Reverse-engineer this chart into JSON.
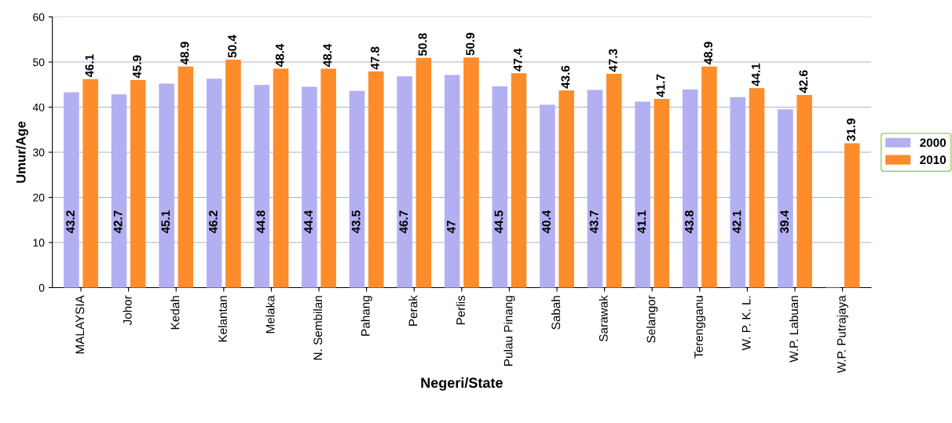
{
  "chart_data": {
    "type": "bar",
    "xlabel": "Negeri/State",
    "ylabel": "Umur/Age",
    "categories": [
      "MALAYSIA",
      "Johor",
      "Kedah",
      "Kelantan",
      "Melaka",
      "N. Sembilan",
      "Pahang",
      "Perak",
      "Perlis",
      "Pulau Pinang",
      "Sabah",
      "Sarawak",
      "Selangor",
      "Terengganu",
      "W. P. K. L.",
      "W.P. Labuan",
      "W.P. Putrajaya"
    ],
    "series": [
      {
        "name": "2000",
        "color": "#b3b0f2",
        "values": [
          43.2,
          42.7,
          45.1,
          46.2,
          44.8,
          44.4,
          43.5,
          46.7,
          47,
          44.5,
          40.4,
          43.7,
          41.1,
          43.8,
          42.1,
          39.4,
          null
        ]
      },
      {
        "name": "2010",
        "color": "#ff8c2a",
        "values": [
          46.1,
          45.9,
          48.9,
          50.4,
          48.4,
          48.4,
          47.8,
          50.8,
          50.9,
          47.4,
          43.6,
          47.3,
          41.7,
          48.9,
          44.1,
          42.6,
          31.9
        ]
      }
    ],
    "ylim": [
      0,
      60
    ],
    "yticks": [
      0,
      10,
      20,
      30,
      40,
      50,
      60
    ],
    "grid": "y",
    "legend": "right",
    "data_labels": true
  }
}
